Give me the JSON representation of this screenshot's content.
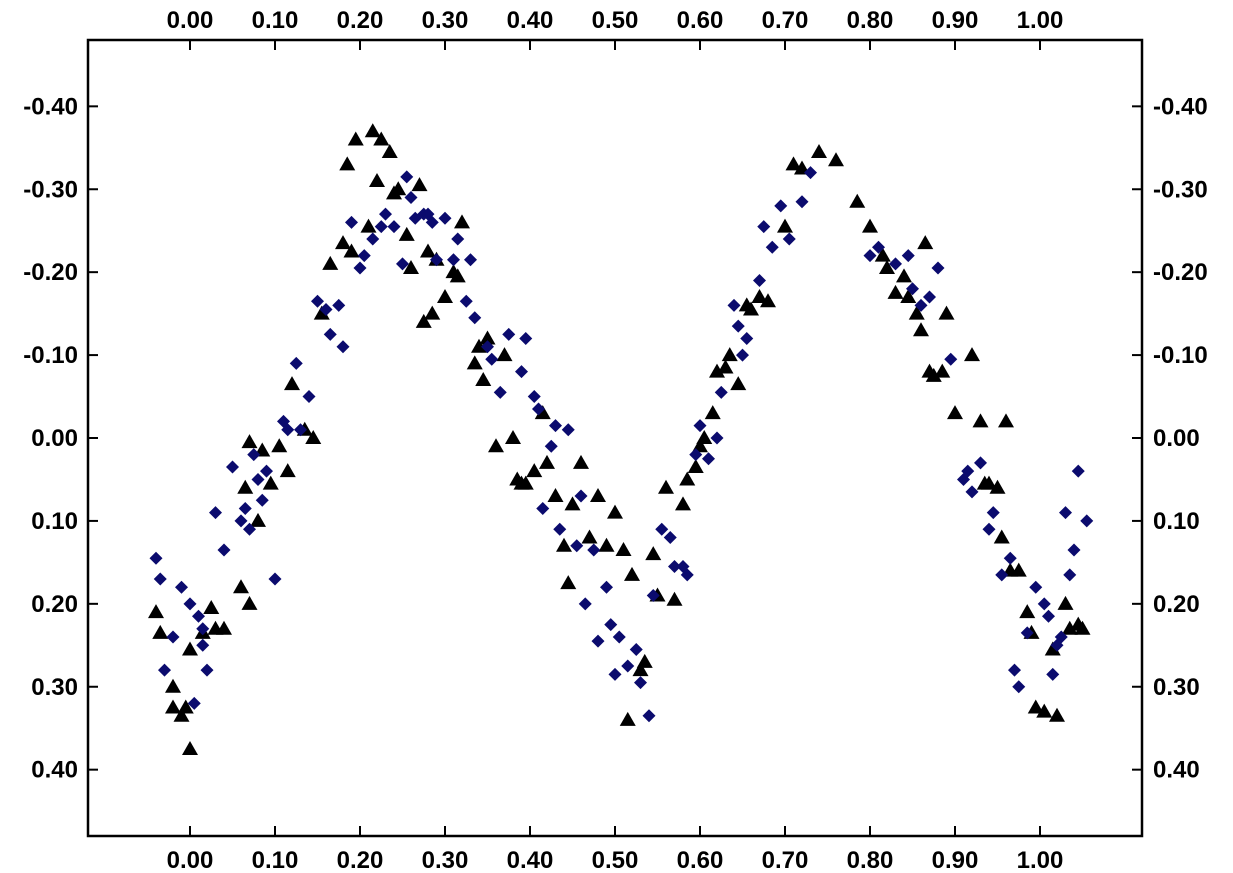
{
  "chart_data": {
    "type": "scatter",
    "title": "",
    "xlabel": "",
    "ylabel": "",
    "xlim": [
      -0.12,
      1.12
    ],
    "ylim": [
      0.48,
      -0.48
    ],
    "y_inverted": true,
    "grid": false,
    "x_ticks": [
      "0.00",
      "0.10",
      "0.20",
      "0.30",
      "0.40",
      "0.50",
      "0.60",
      "0.70",
      "0.80",
      "0.90",
      "1.00"
    ],
    "y_ticks": [
      "-0.40",
      "-0.30",
      "-0.20",
      "-0.10",
      "0.00",
      "0.10",
      "0.20",
      "0.30",
      "0.40"
    ],
    "series": [
      {
        "marker": "triangle",
        "color": "#000000",
        "points": [
          [
            -0.04,
            0.21
          ],
          [
            -0.035,
            0.235
          ],
          [
            -0.02,
            0.3
          ],
          [
            -0.02,
            0.325
          ],
          [
            -0.01,
            0.335
          ],
          [
            -0.005,
            0.325
          ],
          [
            0.0,
            0.255
          ],
          [
            0.0,
            0.375
          ],
          [
            0.015,
            0.235
          ],
          [
            0.025,
            0.205
          ],
          [
            0.03,
            0.23
          ],
          [
            0.04,
            0.23
          ],
          [
            0.06,
            0.18
          ],
          [
            0.065,
            0.06
          ],
          [
            0.07,
            0.2
          ],
          [
            0.07,
            0.005
          ],
          [
            0.08,
            0.1
          ],
          [
            0.085,
            0.015
          ],
          [
            0.095,
            0.055
          ],
          [
            0.105,
            0.01
          ],
          [
            0.115,
            0.04
          ],
          [
            0.12,
            -0.065
          ],
          [
            0.135,
            -0.01
          ],
          [
            0.145,
            0.0
          ],
          [
            0.155,
            -0.15
          ],
          [
            0.165,
            -0.21
          ],
          [
            0.18,
            -0.235
          ],
          [
            0.185,
            -0.33
          ],
          [
            0.19,
            -0.225
          ],
          [
            0.195,
            -0.36
          ],
          [
            0.21,
            -0.255
          ],
          [
            0.215,
            -0.37
          ],
          [
            0.22,
            -0.31
          ],
          [
            0.225,
            -0.36
          ],
          [
            0.235,
            -0.345
          ],
          [
            0.24,
            -0.295
          ],
          [
            0.245,
            -0.3
          ],
          [
            0.255,
            -0.245
          ],
          [
            0.26,
            -0.205
          ],
          [
            0.27,
            -0.305
          ],
          [
            0.275,
            -0.14
          ],
          [
            0.28,
            -0.225
          ],
          [
            0.285,
            -0.15
          ],
          [
            0.29,
            -0.215
          ],
          [
            0.3,
            -0.17
          ],
          [
            0.31,
            -0.2
          ],
          [
            0.315,
            -0.195
          ],
          [
            0.32,
            -0.26
          ],
          [
            0.335,
            -0.09
          ],
          [
            0.34,
            -0.11
          ],
          [
            0.345,
            -0.07
          ],
          [
            0.35,
            -0.12
          ],
          [
            0.36,
            0.01
          ],
          [
            0.37,
            -0.1
          ],
          [
            0.38,
            0.0
          ],
          [
            0.385,
            0.05
          ],
          [
            0.39,
            0.055
          ],
          [
            0.395,
            0.055
          ],
          [
            0.405,
            0.04
          ],
          [
            0.415,
            -0.03
          ],
          [
            0.42,
            0.03
          ],
          [
            0.43,
            0.07
          ],
          [
            0.44,
            0.13
          ],
          [
            0.445,
            0.175
          ],
          [
            0.45,
            0.08
          ],
          [
            0.46,
            0.03
          ],
          [
            0.47,
            0.12
          ],
          [
            0.48,
            0.07
          ],
          [
            0.49,
            0.13
          ],
          [
            0.5,
            0.09
          ],
          [
            0.51,
            0.135
          ],
          [
            0.515,
            0.34
          ],
          [
            0.52,
            0.165
          ],
          [
            0.53,
            0.28
          ],
          [
            0.535,
            0.27
          ],
          [
            0.545,
            0.14
          ],
          [
            0.55,
            0.19
          ],
          [
            0.56,
            0.06
          ],
          [
            0.57,
            0.195
          ],
          [
            0.58,
            0.08
          ],
          [
            0.585,
            0.05
          ],
          [
            0.595,
            0.035
          ],
          [
            0.6,
            0.01
          ],
          [
            0.605,
            0.0
          ],
          [
            0.615,
            -0.03
          ],
          [
            0.62,
            -0.08
          ],
          [
            0.63,
            -0.085
          ],
          [
            0.635,
            -0.1
          ],
          [
            0.645,
            -0.065
          ],
          [
            0.655,
            -0.16
          ],
          [
            0.66,
            -0.155
          ],
          [
            0.67,
            -0.17
          ],
          [
            0.68,
            -0.165
          ],
          [
            0.7,
            -0.255
          ],
          [
            0.71,
            -0.33
          ],
          [
            0.72,
            -0.325
          ],
          [
            0.74,
            -0.345
          ],
          [
            0.76,
            -0.335
          ],
          [
            0.785,
            -0.285
          ],
          [
            0.8,
            -0.255
          ],
          [
            0.815,
            -0.22
          ],
          [
            0.82,
            -0.205
          ],
          [
            0.83,
            -0.175
          ],
          [
            0.84,
            -0.195
          ],
          [
            0.845,
            -0.17
          ],
          [
            0.855,
            -0.15
          ],
          [
            0.86,
            -0.13
          ],
          [
            0.865,
            -0.235
          ],
          [
            0.87,
            -0.08
          ],
          [
            0.875,
            -0.075
          ],
          [
            0.885,
            -0.08
          ],
          [
            0.89,
            -0.15
          ],
          [
            0.9,
            -0.03
          ],
          [
            0.92,
            -0.1
          ],
          [
            0.93,
            -0.02
          ],
          [
            0.935,
            0.055
          ],
          [
            0.94,
            0.055
          ],
          [
            0.95,
            0.06
          ],
          [
            0.955,
            0.12
          ],
          [
            0.96,
            -0.02
          ],
          [
            0.965,
            0.16
          ],
          [
            0.975,
            0.16
          ],
          [
            0.985,
            0.21
          ],
          [
            0.99,
            0.235
          ],
          [
            0.995,
            0.325
          ],
          [
            1.005,
            0.33
          ],
          [
            1.015,
            0.255
          ],
          [
            1.02,
            0.335
          ],
          [
            1.03,
            0.2
          ],
          [
            1.035,
            0.23
          ],
          [
            1.045,
            0.225
          ],
          [
            1.05,
            0.23
          ]
        ]
      },
      {
        "marker": "diamond",
        "color": "#0b0b6e",
        "points": [
          [
            -0.04,
            0.145
          ],
          [
            -0.035,
            0.17
          ],
          [
            -0.03,
            0.28
          ],
          [
            -0.02,
            0.24
          ],
          [
            -0.01,
            0.18
          ],
          [
            0.0,
            0.2
          ],
          [
            0.005,
            0.32
          ],
          [
            0.01,
            0.215
          ],
          [
            0.015,
            0.25
          ],
          [
            0.02,
            0.28
          ],
          [
            0.03,
            0.09
          ],
          [
            0.04,
            0.135
          ],
          [
            0.05,
            0.035
          ],
          [
            0.06,
            0.1
          ],
          [
            0.065,
            0.085
          ],
          [
            0.07,
            0.11
          ],
          [
            0.075,
            0.02
          ],
          [
            0.08,
            0.05
          ],
          [
            0.085,
            0.075
          ],
          [
            0.09,
            0.04
          ],
          [
            0.1,
            0.17
          ],
          [
            0.11,
            -0.02
          ],
          [
            0.115,
            -0.01
          ],
          [
            0.125,
            -0.09
          ],
          [
            0.13,
            -0.01
          ],
          [
            0.14,
            -0.05
          ],
          [
            0.15,
            -0.165
          ],
          [
            0.16,
            -0.155
          ],
          [
            0.165,
            -0.125
          ],
          [
            0.175,
            -0.16
          ],
          [
            0.18,
            -0.11
          ],
          [
            0.19,
            -0.26
          ],
          [
            0.2,
            -0.205
          ],
          [
            0.205,
            -0.22
          ],
          [
            0.215,
            -0.24
          ],
          [
            0.225,
            -0.255
          ],
          [
            0.23,
            -0.27
          ],
          [
            0.24,
            -0.255
          ],
          [
            0.25,
            -0.21
          ],
          [
            0.255,
            -0.315
          ],
          [
            0.26,
            -0.29
          ],
          [
            0.265,
            -0.265
          ],
          [
            0.275,
            -0.27
          ],
          [
            0.28,
            -0.27
          ],
          [
            0.285,
            -0.26
          ],
          [
            0.29,
            -0.215
          ],
          [
            0.3,
            -0.265
          ],
          [
            0.31,
            -0.215
          ],
          [
            0.315,
            -0.24
          ],
          [
            0.325,
            -0.165
          ],
          [
            0.33,
            -0.215
          ],
          [
            0.335,
            -0.145
          ],
          [
            0.35,
            -0.11
          ],
          [
            0.355,
            -0.095
          ],
          [
            0.365,
            -0.055
          ],
          [
            0.375,
            -0.125
          ],
          [
            0.39,
            -0.08
          ],
          [
            0.395,
            -0.12
          ],
          [
            0.405,
            -0.05
          ],
          [
            0.41,
            -0.035
          ],
          [
            0.415,
            0.085
          ],
          [
            0.425,
            0.01
          ],
          [
            0.43,
            -0.015
          ],
          [
            0.435,
            0.11
          ],
          [
            0.445,
            -0.01
          ],
          [
            0.455,
            0.13
          ],
          [
            0.46,
            0.07
          ],
          [
            0.465,
            0.2
          ],
          [
            0.475,
            0.135
          ],
          [
            0.48,
            0.245
          ],
          [
            0.49,
            0.18
          ],
          [
            0.495,
            0.225
          ],
          [
            0.5,
            0.285
          ],
          [
            0.505,
            0.24
          ],
          [
            0.515,
            0.275
          ],
          [
            0.525,
            0.255
          ],
          [
            0.53,
            0.295
          ],
          [
            0.54,
            0.335
          ],
          [
            0.545,
            0.19
          ],
          [
            0.555,
            0.11
          ],
          [
            0.565,
            0.12
          ],
          [
            0.57,
            0.155
          ],
          [
            0.58,
            0.155
          ],
          [
            0.585,
            0.165
          ],
          [
            0.595,
            0.02
          ],
          [
            0.6,
            -0.015
          ],
          [
            0.61,
            0.025
          ],
          [
            0.62,
            0.0
          ],
          [
            0.625,
            -0.055
          ],
          [
            0.64,
            -0.16
          ],
          [
            0.645,
            -0.135
          ],
          [
            0.65,
            -0.1
          ],
          [
            0.655,
            -0.12
          ],
          [
            0.67,
            -0.19
          ],
          [
            0.675,
            -0.255
          ],
          [
            0.685,
            -0.23
          ],
          [
            0.695,
            -0.28
          ],
          [
            0.705,
            -0.24
          ],
          [
            0.72,
            -0.285
          ],
          [
            0.73,
            -0.32
          ],
          [
            0.8,
            -0.22
          ],
          [
            0.81,
            -0.23
          ],
          [
            0.83,
            -0.21
          ],
          [
            0.845,
            -0.22
          ],
          [
            0.85,
            -0.18
          ],
          [
            0.86,
            -0.16
          ],
          [
            0.87,
            -0.17
          ],
          [
            0.88,
            -0.205
          ],
          [
            0.895,
            -0.095
          ],
          [
            0.91,
            0.05
          ],
          [
            0.915,
            0.04
          ],
          [
            0.92,
            0.065
          ],
          [
            0.93,
            0.03
          ],
          [
            0.94,
            0.11
          ],
          [
            0.945,
            0.09
          ],
          [
            0.955,
            0.165
          ],
          [
            0.965,
            0.145
          ],
          [
            0.97,
            0.28
          ],
          [
            0.975,
            0.3
          ],
          [
            0.985,
            0.235
          ],
          [
            0.995,
            0.18
          ],
          [
            1.005,
            0.2
          ],
          [
            1.01,
            0.215
          ],
          [
            1.015,
            0.285
          ],
          [
            1.02,
            0.25
          ],
          [
            1.025,
            0.24
          ],
          [
            1.03,
            0.09
          ],
          [
            1.035,
            0.165
          ],
          [
            1.04,
            0.135
          ],
          [
            1.045,
            0.04
          ],
          [
            1.055,
            0.1
          ],
          [
            0.015,
            0.23
          ]
        ]
      }
    ]
  }
}
